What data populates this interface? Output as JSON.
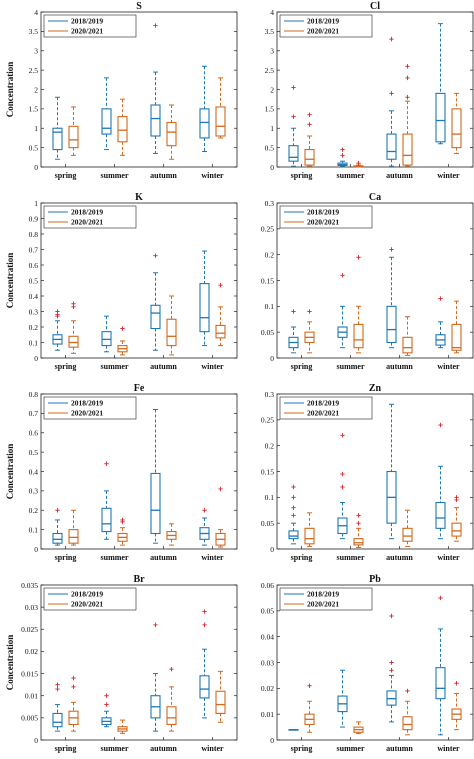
{
  "colors": {
    "series_2018": "#1f77b4",
    "series_2020": "#d2691e",
    "outlier": "#d62728"
  },
  "legend": [
    "2018/2019",
    "2020/2021"
  ],
  "categories": [
    "spring",
    "summer",
    "autumn",
    "winter"
  ],
  "ylabel": "Concentration",
  "chart_data": [
    {
      "type": "box",
      "title": "S",
      "ylabel": "Concentration",
      "categories": [
        "spring",
        "summer",
        "autumn",
        "winter"
      ],
      "ylim": [
        0,
        4
      ],
      "yticks": [
        0,
        0.5,
        1,
        1.5,
        2,
        2.5,
        3,
        3.5,
        4
      ],
      "legend": "top-left",
      "series": [
        {
          "name": "2018/2019",
          "boxes": [
            {
              "min": 0.2,
              "q1": 0.45,
              "median": 0.9,
              "q3": 1.0,
              "max": 1.8,
              "outliers": []
            },
            {
              "min": 0.45,
              "q1": 0.85,
              "median": 1.0,
              "q3": 1.5,
              "max": 2.3,
              "outliers": []
            },
            {
              "min": 0.35,
              "q1": 0.8,
              "median": 1.25,
              "q3": 1.6,
              "max": 2.45,
              "outliers": [
                3.65
              ]
            },
            {
              "min": 0.4,
              "q1": 0.75,
              "median": 1.15,
              "q3": 1.5,
              "max": 2.6,
              "outliers": []
            }
          ]
        },
        {
          "name": "2020/2021",
          "boxes": [
            {
              "min": 0.3,
              "q1": 0.5,
              "median": 0.7,
              "q3": 1.05,
              "max": 1.55,
              "outliers": []
            },
            {
              "min": 0.3,
              "q1": 0.65,
              "median": 0.95,
              "q3": 1.3,
              "max": 1.75,
              "outliers": []
            },
            {
              "min": 0.2,
              "q1": 0.55,
              "median": 0.9,
              "q3": 1.15,
              "max": 1.6,
              "outliers": []
            },
            {
              "min": 0.75,
              "q1": 0.8,
              "median": 1.05,
              "q3": 1.55,
              "max": 2.3,
              "outliers": []
            }
          ]
        }
      ]
    },
    {
      "type": "box",
      "title": "Cl",
      "ylabel": "",
      "categories": [
        "spring",
        "summer",
        "autumn",
        "winter"
      ],
      "ylim": [
        0,
        4
      ],
      "yticks": [
        0,
        0.5,
        1,
        1.5,
        2,
        2.5,
        3,
        3.5,
        4
      ],
      "legend": "top-left",
      "series": [
        {
          "name": "2018/2019",
          "boxes": [
            {
              "min": 0.02,
              "q1": 0.15,
              "median": 0.25,
              "q3": 0.55,
              "max": 1.0,
              "outliers": [
                1.3,
                2.05
              ]
            },
            {
              "min": 0.02,
              "q1": 0.04,
              "median": 0.06,
              "q3": 0.1,
              "max": 0.15,
              "outliers": [
                0.3,
                0.45
              ]
            },
            {
              "min": 0.02,
              "q1": 0.2,
              "median": 0.4,
              "q3": 0.85,
              "max": 1.45,
              "outliers": [
                1.9,
                3.3
              ]
            },
            {
              "min": 0.6,
              "q1": 0.65,
              "median": 1.2,
              "q3": 1.9,
              "max": 3.7,
              "outliers": []
            }
          ]
        },
        {
          "name": "2020/2021",
          "boxes": [
            {
              "min": 0.02,
              "q1": 0.05,
              "median": 0.2,
              "q3": 0.45,
              "max": 0.8,
              "outliers": [
                1.1,
                1.35
              ]
            },
            {
              "min": 0.0,
              "q1": 0.01,
              "median": 0.02,
              "q3": 0.03,
              "max": 0.05,
              "outliers": [
                0.1
              ]
            },
            {
              "min": 0.02,
              "q1": 0.05,
              "median": 0.3,
              "q3": 0.85,
              "max": 1.7,
              "outliers": [
                1.8,
                2.3,
                2.6
              ]
            },
            {
              "min": 0.35,
              "q1": 0.5,
              "median": 0.85,
              "q3": 1.5,
              "max": 1.9,
              "outliers": []
            }
          ]
        }
      ]
    },
    {
      "type": "box",
      "title": "K",
      "ylabel": "Concentration",
      "categories": [
        "spring",
        "summer",
        "autumn",
        "winter"
      ],
      "ylim": [
        0,
        1
      ],
      "yticks": [
        0,
        0.1,
        0.2,
        0.3,
        0.4,
        0.5,
        0.6,
        0.7,
        0.8,
        0.9,
        1
      ],
      "legend": "top-left",
      "series": [
        {
          "name": "2018/2019",
          "boxes": [
            {
              "min": 0.05,
              "q1": 0.09,
              "median": 0.12,
              "q3": 0.15,
              "max": 0.24,
              "outliers": [
                0.27,
                0.28,
                0.3
              ]
            },
            {
              "min": 0.04,
              "q1": 0.08,
              "median": 0.12,
              "q3": 0.17,
              "max": 0.27,
              "outliers": []
            },
            {
              "min": 0.05,
              "q1": 0.19,
              "median": 0.29,
              "q3": 0.34,
              "max": 0.55,
              "outliers": [
                0.66
              ]
            },
            {
              "min": 0.08,
              "q1": 0.17,
              "median": 0.26,
              "q3": 0.48,
              "max": 0.69,
              "outliers": []
            }
          ]
        },
        {
          "name": "2020/2021",
          "boxes": [
            {
              "min": 0.03,
              "q1": 0.07,
              "median": 0.1,
              "q3": 0.14,
              "max": 0.24,
              "outliers": [
                0.33,
                0.35
              ]
            },
            {
              "min": 0.02,
              "q1": 0.04,
              "median": 0.06,
              "q3": 0.08,
              "max": 0.11,
              "outliers": [
                0.19
              ]
            },
            {
              "min": 0.02,
              "q1": 0.08,
              "median": 0.14,
              "q3": 0.25,
              "max": 0.4,
              "outliers": []
            },
            {
              "min": 0.08,
              "q1": 0.13,
              "median": 0.16,
              "q3": 0.21,
              "max": 0.33,
              "outliers": [
                0.47
              ]
            }
          ]
        }
      ]
    },
    {
      "type": "box",
      "title": "Ca",
      "ylabel": "",
      "categories": [
        "spring",
        "summer",
        "autumn",
        "winter"
      ],
      "ylim": [
        0,
        0.3
      ],
      "yticks": [
        0,
        0.05,
        0.1,
        0.15,
        0.2,
        0.25,
        0.3
      ],
      "legend": "top-left",
      "series": [
        {
          "name": "2018/2019",
          "boxes": [
            {
              "min": 0.01,
              "q1": 0.02,
              "median": 0.03,
              "q3": 0.04,
              "max": 0.06,
              "outliers": [
                0.09
              ]
            },
            {
              "min": 0.02,
              "q1": 0.04,
              "median": 0.05,
              "q3": 0.06,
              "max": 0.1,
              "outliers": [
                0.16
              ]
            },
            {
              "min": 0.02,
              "q1": 0.03,
              "median": 0.055,
              "q3": 0.1,
              "max": 0.195,
              "outliers": [
                0.21
              ]
            },
            {
              "min": 0.02,
              "q1": 0.025,
              "median": 0.035,
              "q3": 0.045,
              "max": 0.07,
              "outliers": [
                0.115
              ]
            }
          ]
        },
        {
          "name": "2020/2021",
          "boxes": [
            {
              "min": 0.01,
              "q1": 0.03,
              "median": 0.04,
              "q3": 0.05,
              "max": 0.07,
              "outliers": [
                0.09
              ]
            },
            {
              "min": 0.01,
              "q1": 0.02,
              "median": 0.035,
              "q3": 0.065,
              "max": 0.1,
              "outliers": [
                0.195,
                0.28
              ]
            },
            {
              "min": 0.005,
              "q1": 0.01,
              "median": 0.02,
              "q3": 0.04,
              "max": 0.08,
              "outliers": []
            },
            {
              "min": 0.01,
              "q1": 0.015,
              "median": 0.02,
              "q3": 0.065,
              "max": 0.11,
              "outliers": []
            }
          ]
        }
      ]
    },
    {
      "type": "box",
      "title": "Fe",
      "ylabel": "Concentration",
      "categories": [
        "spring",
        "summer",
        "autumn",
        "winter"
      ],
      "ylim": [
        0,
        0.8
      ],
      "yticks": [
        0,
        0.1,
        0.2,
        0.3,
        0.4,
        0.5,
        0.6,
        0.7,
        0.8
      ],
      "legend": "top-left",
      "series": [
        {
          "name": "2018/2019",
          "boxes": [
            {
              "min": 0.02,
              "q1": 0.03,
              "median": 0.05,
              "q3": 0.08,
              "max": 0.15,
              "outliers": [
                0.2
              ]
            },
            {
              "min": 0.05,
              "q1": 0.09,
              "median": 0.13,
              "q3": 0.21,
              "max": 0.3,
              "outliers": [
                0.44
              ]
            },
            {
              "min": 0.03,
              "q1": 0.08,
              "median": 0.2,
              "q3": 0.39,
              "max": 0.72,
              "outliers": []
            },
            {
              "min": 0.02,
              "q1": 0.05,
              "median": 0.08,
              "q3": 0.11,
              "max": 0.16,
              "outliers": [
                0.2
              ]
            }
          ]
        },
        {
          "name": "2020/2021",
          "boxes": [
            {
              "min": 0.02,
              "q1": 0.03,
              "median": 0.06,
              "q3": 0.1,
              "max": 0.2,
              "outliers": []
            },
            {
              "min": 0.02,
              "q1": 0.04,
              "median": 0.06,
              "q3": 0.08,
              "max": 0.11,
              "outliers": [
                0.14,
                0.15
              ]
            },
            {
              "min": 0.02,
              "q1": 0.05,
              "median": 0.07,
              "q3": 0.09,
              "max": 0.13,
              "outliers": []
            },
            {
              "min": 0.01,
              "q1": 0.02,
              "median": 0.05,
              "q3": 0.08,
              "max": 0.1,
              "outliers": [
                0.31
              ]
            }
          ]
        }
      ]
    },
    {
      "type": "box",
      "title": "Zn",
      "ylabel": "",
      "categories": [
        "spring",
        "summer",
        "autumn",
        "winter"
      ],
      "ylim": [
        0,
        0.3
      ],
      "yticks": [
        0,
        0.05,
        0.1,
        0.15,
        0.2,
        0.25,
        0.3
      ],
      "legend": "top-left",
      "series": [
        {
          "name": "2018/2019",
          "boxes": [
            {
              "min": 0.01,
              "q1": 0.02,
              "median": 0.025,
              "q3": 0.035,
              "max": 0.05,
              "outliers": [
                0.065,
                0.08,
                0.1,
                0.12
              ]
            },
            {
              "min": 0.02,
              "q1": 0.03,
              "median": 0.045,
              "q3": 0.06,
              "max": 0.09,
              "outliers": [
                0.12,
                0.145,
                0.22
              ]
            },
            {
              "min": 0.02,
              "q1": 0.05,
              "median": 0.1,
              "q3": 0.15,
              "max": 0.28,
              "outliers": []
            },
            {
              "min": 0.02,
              "q1": 0.04,
              "median": 0.06,
              "q3": 0.09,
              "max": 0.16,
              "outliers": [
                0.24
              ]
            }
          ]
        },
        {
          "name": "2020/2021",
          "boxes": [
            {
              "min": 0.005,
              "q1": 0.01,
              "median": 0.02,
              "q3": 0.04,
              "max": 0.07,
              "outliers": []
            },
            {
              "min": 0.003,
              "q1": 0.008,
              "median": 0.012,
              "q3": 0.02,
              "max": 0.04,
              "outliers": [
                0.05,
                0.065
              ]
            },
            {
              "min": 0.005,
              "q1": 0.015,
              "median": 0.025,
              "q3": 0.04,
              "max": 0.075,
              "outliers": []
            },
            {
              "min": 0.015,
              "q1": 0.025,
              "median": 0.035,
              "q3": 0.05,
              "max": 0.08,
              "outliers": [
                0.095,
                0.1
              ]
            }
          ]
        }
      ]
    },
    {
      "type": "box",
      "title": "Br",
      "ylabel": "Concentration",
      "categories": [
        "spring",
        "summer",
        "autumn",
        "winter"
      ],
      "ylim": [
        0,
        0.035
      ],
      "yticks": [
        0,
        0.005,
        0.01,
        0.015,
        0.02,
        0.025,
        0.03,
        0.035
      ],
      "legend": "top-left",
      "series": [
        {
          "name": "2018/2019",
          "boxes": [
            {
              "min": 0.002,
              "q1": 0.003,
              "median": 0.004,
              "q3": 0.006,
              "max": 0.008,
              "outliers": [
                0.0115,
                0.0125
              ]
            },
            {
              "min": 0.003,
              "q1": 0.0035,
              "median": 0.0042,
              "q3": 0.005,
              "max": 0.0065,
              "outliers": [
                0.008,
                0.01
              ]
            },
            {
              "min": 0.002,
              "q1": 0.005,
              "median": 0.0075,
              "q3": 0.01,
              "max": 0.015,
              "outliers": [
                0.026
              ]
            },
            {
              "min": 0.005,
              "q1": 0.0095,
              "median": 0.0115,
              "q3": 0.0145,
              "max": 0.0205,
              "outliers": [
                0.026,
                0.029
              ]
            }
          ]
        },
        {
          "name": "2020/2021",
          "boxes": [
            {
              "min": 0.002,
              "q1": 0.0035,
              "median": 0.005,
              "q3": 0.0065,
              "max": 0.0085,
              "outliers": [
                0.012,
                0.014
              ]
            },
            {
              "min": 0.0015,
              "q1": 0.002,
              "median": 0.0025,
              "q3": 0.003,
              "max": 0.0045,
              "outliers": []
            },
            {
              "min": 0.002,
              "q1": 0.0035,
              "median": 0.005,
              "q3": 0.0075,
              "max": 0.012,
              "outliers": [
                0.016
              ]
            },
            {
              "min": 0.004,
              "q1": 0.006,
              "median": 0.008,
              "q3": 0.011,
              "max": 0.0155,
              "outliers": []
            }
          ]
        }
      ]
    },
    {
      "type": "box",
      "title": "Pb",
      "ylabel": "",
      "categories": [
        "spring",
        "summer",
        "autumn",
        "winter"
      ],
      "ylim": [
        0,
        0.06
      ],
      "yticks": [
        0,
        0.01,
        0.02,
        0.03,
        0.04,
        0.05,
        0.06
      ],
      "legend": "top-left",
      "series": [
        {
          "name": "2018/2019",
          "boxes": [
            {
              "min": 0.004,
              "q1": 0.004,
              "median": 0.004,
              "q3": 0.004,
              "max": 0.004,
              "outliers": []
            },
            {
              "min": 0.005,
              "q1": 0.011,
              "median": 0.014,
              "q3": 0.017,
              "max": 0.027,
              "outliers": []
            },
            {
              "min": 0.007,
              "q1": 0.0135,
              "median": 0.016,
              "q3": 0.019,
              "max": 0.025,
              "outliers": [
                0.027,
                0.03,
                0.048
              ]
            },
            {
              "min": 0.002,
              "q1": 0.016,
              "median": 0.02,
              "q3": 0.028,
              "max": 0.043,
              "outliers": [
                0.055
              ]
            }
          ]
        },
        {
          "name": "2020/2021",
          "boxes": [
            {
              "min": 0.003,
              "q1": 0.006,
              "median": 0.008,
              "q3": 0.01,
              "max": 0.015,
              "outliers": [
                0.021
              ]
            },
            {
              "min": 0.0025,
              "q1": 0.003,
              "median": 0.004,
              "q3": 0.005,
              "max": 0.007,
              "outliers": []
            },
            {
              "min": 0.002,
              "q1": 0.004,
              "median": 0.006,
              "q3": 0.009,
              "max": 0.015,
              "outliers": [
                0.019
              ]
            },
            {
              "min": 0.004,
              "q1": 0.008,
              "median": 0.01,
              "q3": 0.012,
              "max": 0.018,
              "outliers": [
                0.022
              ]
            }
          ]
        }
      ]
    }
  ]
}
